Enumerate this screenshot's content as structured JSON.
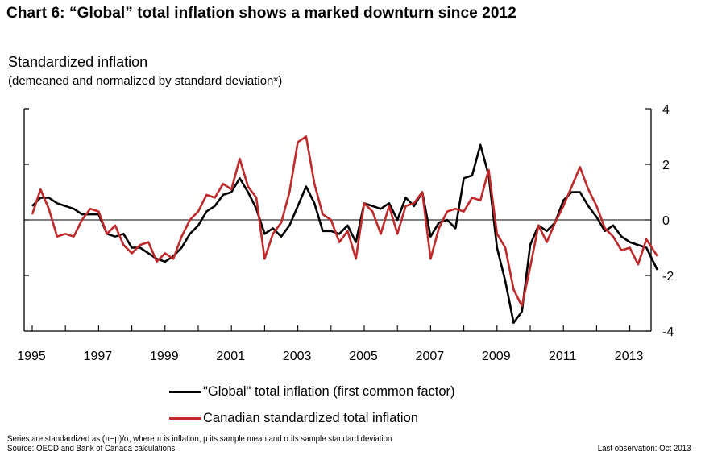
{
  "chart_data": {
    "type": "line",
    "title": "Chart 6: “Global” total inflation shows a marked downturn since 2012",
    "subtitle": "Standardized inflation",
    "subtitle2": "(demeaned and normalized by standard deviation*)",
    "xlabel": "",
    "ylabel": "",
    "xlim": [
      1995,
      2013.83
    ],
    "ylim": [
      -4,
      4
    ],
    "x_ticks": [
      1995,
      1996,
      1997,
      1998,
      1999,
      2000,
      2001,
      2002,
      2003,
      2004,
      2005,
      2006,
      2007,
      2008,
      2009,
      2010,
      2011,
      2012,
      2013
    ],
    "x_tick_labels": [
      "1995",
      "1997",
      "1999",
      "2001",
      "2003",
      "2005",
      "2007",
      "2009",
      "2011",
      "2013"
    ],
    "x_tick_label_years": [
      1995,
      1997,
      1999,
      2001,
      2003,
      2005,
      2007,
      2009,
      2011,
      2013
    ],
    "y_ticks": [
      4,
      2,
      0,
      -2,
      -4
    ],
    "y_tick_labels": [
      "4",
      "2",
      "0",
      "-2",
      "-4"
    ],
    "y_axis_side": "right",
    "zero_line": true,
    "grid": false,
    "legend_placement": "bottom-center",
    "series": [
      {
        "name": "\"Global\" total inflation (first common factor)",
        "color": "#000000",
        "x": [
          1995.0,
          1995.25,
          1995.5,
          1995.75,
          1996.0,
          1996.25,
          1996.5,
          1996.75,
          1997.0,
          1997.25,
          1997.5,
          1997.75,
          1998.0,
          1998.25,
          1998.5,
          1998.75,
          1999.0,
          1999.25,
          1999.5,
          1999.75,
          2000.0,
          2000.25,
          2000.5,
          2000.75,
          2001.0,
          2001.25,
          2001.5,
          2001.75,
          2002.0,
          2002.25,
          2002.5,
          2002.75,
          2003.0,
          2003.25,
          2003.5,
          2003.75,
          2004.0,
          2004.25,
          2004.5,
          2004.75,
          2005.0,
          2005.25,
          2005.5,
          2005.75,
          2006.0,
          2006.25,
          2006.5,
          2006.75,
          2007.0,
          2007.25,
          2007.5,
          2007.75,
          2008.0,
          2008.25,
          2008.5,
          2008.75,
          2009.0,
          2009.25,
          2009.5,
          2009.75,
          2010.0,
          2010.25,
          2010.5,
          2010.75,
          2011.0,
          2011.25,
          2011.5,
          2011.75,
          2012.0,
          2012.25,
          2012.5,
          2012.75,
          2013.0,
          2013.25,
          2013.5,
          2013.83
        ],
        "values": [
          0.5,
          0.8,
          0.8,
          0.6,
          0.5,
          0.4,
          0.2,
          0.2,
          0.2,
          -0.5,
          -0.6,
          -0.5,
          -1.0,
          -1.0,
          -1.2,
          -1.4,
          -1.5,
          -1.3,
          -1.0,
          -0.5,
          -0.2,
          0.3,
          0.5,
          0.9,
          1.0,
          1.5,
          1.0,
          0.4,
          -0.5,
          -0.3,
          -0.6,
          -0.2,
          0.5,
          1.2,
          0.6,
          -0.4,
          -0.4,
          -0.5,
          -0.2,
          -0.8,
          0.6,
          0.5,
          0.4,
          0.6,
          0.0,
          0.8,
          0.5,
          1.0,
          -0.6,
          -0.1,
          0.0,
          -0.3,
          1.5,
          1.6,
          2.7,
          1.6,
          -1.0,
          -2.2,
          -3.7,
          -3.3,
          -0.9,
          -0.2,
          -0.4,
          -0.1,
          0.7,
          1.0,
          1.0,
          0.5,
          0.1,
          -0.4,
          -0.2,
          -0.6,
          -0.8,
          -0.9,
          -1.0,
          -1.8
        ]
      },
      {
        "name": "Canadian standardized total inflation",
        "color": "#c0282a",
        "x": [
          1995.0,
          1995.25,
          1995.5,
          1995.75,
          1996.0,
          1996.25,
          1996.5,
          1996.75,
          1997.0,
          1997.25,
          1997.5,
          1997.75,
          1998.0,
          1998.25,
          1998.5,
          1998.75,
          1999.0,
          1999.25,
          1999.5,
          1999.75,
          2000.0,
          2000.25,
          2000.5,
          2000.75,
          2001.0,
          2001.25,
          2001.5,
          2001.75,
          2002.0,
          2002.25,
          2002.5,
          2002.75,
          2003.0,
          2003.25,
          2003.5,
          2003.75,
          2004.0,
          2004.25,
          2004.5,
          2004.75,
          2005.0,
          2005.25,
          2005.5,
          2005.75,
          2006.0,
          2006.25,
          2006.5,
          2006.75,
          2007.0,
          2007.25,
          2007.5,
          2007.75,
          2008.0,
          2008.25,
          2008.5,
          2008.75,
          2009.0,
          2009.25,
          2009.5,
          2009.75,
          2010.0,
          2010.25,
          2010.5,
          2010.75,
          2011.0,
          2011.25,
          2011.5,
          2011.75,
          2012.0,
          2012.25,
          2012.5,
          2012.75,
          2013.0,
          2013.25,
          2013.5,
          2013.83
        ],
        "values": [
          0.2,
          1.1,
          0.4,
          -0.6,
          -0.5,
          -0.6,
          0.0,
          0.4,
          0.3,
          -0.5,
          -0.2,
          -0.9,
          -1.2,
          -0.9,
          -0.8,
          -1.5,
          -1.2,
          -1.4,
          -0.6,
          0.0,
          0.3,
          0.9,
          0.8,
          1.3,
          1.1,
          2.2,
          1.2,
          0.8,
          -1.4,
          -0.5,
          -0.1,
          1.0,
          2.8,
          3.0,
          1.3,
          0.2,
          0.0,
          -0.8,
          -0.4,
          -1.4,
          0.6,
          0.3,
          -0.5,
          0.5,
          -0.5,
          0.5,
          0.6,
          1.0,
          -1.4,
          -0.3,
          0.3,
          0.4,
          0.3,
          0.8,
          0.7,
          1.8,
          -0.5,
          -1.0,
          -2.5,
          -3.1,
          -1.7,
          -0.2,
          -0.8,
          -0.1,
          0.5,
          1.2,
          1.9,
          1.1,
          0.5,
          -0.3,
          -0.6,
          -1.1,
          -1.0,
          -1.6,
          -0.7,
          -1.3
        ]
      }
    ]
  },
  "footnote": {
    "line1": "Series are standardized as (π−μ)/σ,  where π is inflation, μ its sample mean and σ its sample standard deviation",
    "line2": "Source: OECD and Bank of Canada calculations",
    "last_observation": "Last observation: Oct 2013"
  }
}
